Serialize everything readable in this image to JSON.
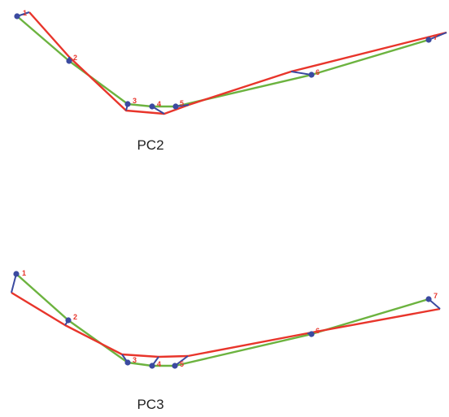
{
  "colors": {
    "mean_shape": "#6cb33f",
    "deformed_shape": "#e8352b",
    "landmark": "#3b4aa0",
    "vector": "#3b4aa0",
    "label": "#e8352b"
  },
  "panels": [
    {
      "caption": "PC2",
      "landmarks": [
        {
          "label": "1"
        },
        {
          "label": "2"
        },
        {
          "label": "3"
        },
        {
          "label": "4"
        },
        {
          "label": "5"
        },
        {
          "label": "6"
        },
        {
          "label": "7"
        }
      ]
    },
    {
      "caption": "PC3",
      "landmarks": [
        {
          "label": "1"
        },
        {
          "label": "2"
        },
        {
          "label": "3"
        },
        {
          "label": "4"
        },
        {
          "label": "5"
        },
        {
          "label": "6"
        },
        {
          "label": "7"
        }
      ]
    }
  ]
}
